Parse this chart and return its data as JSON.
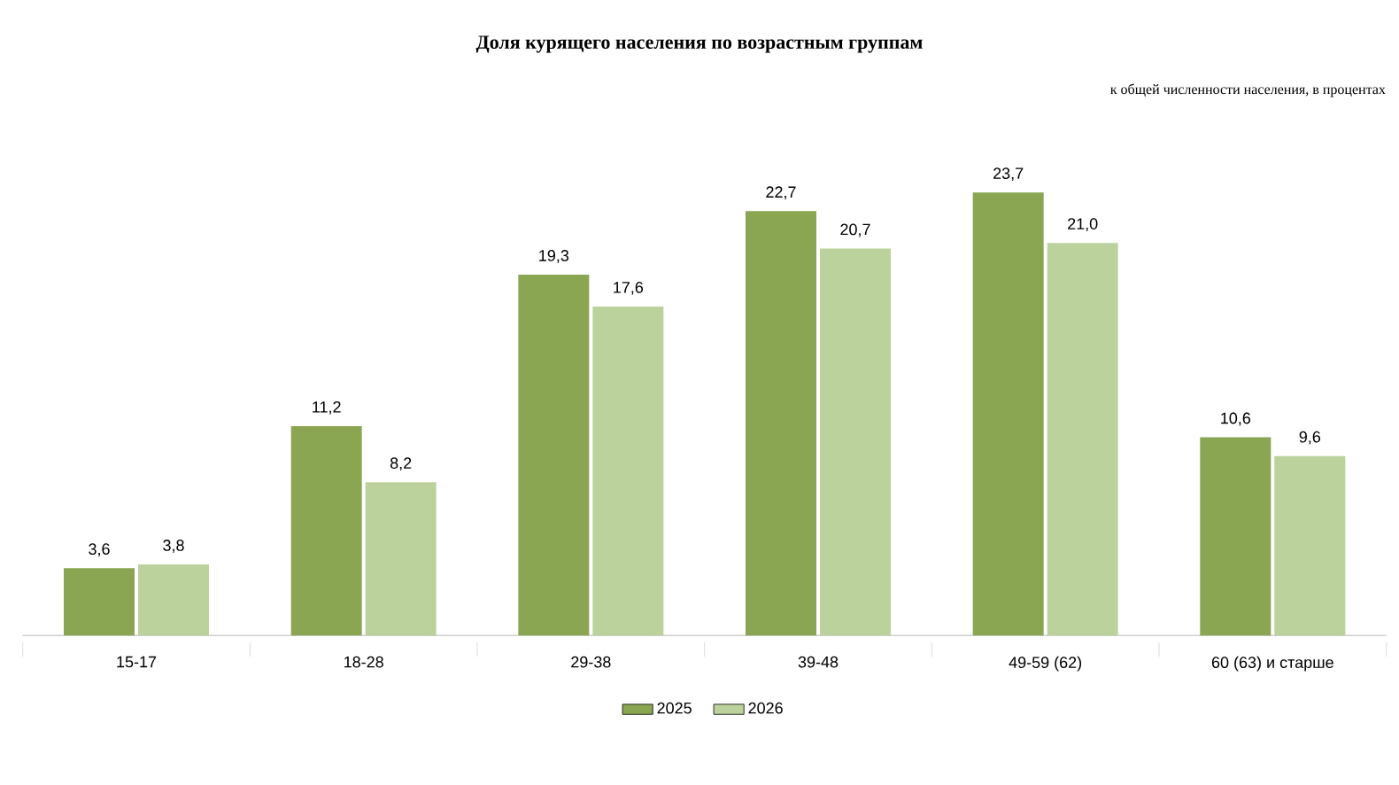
{
  "chart_data": {
    "type": "bar",
    "title": "Доля курящего  населения по возрастным группам",
    "subtitle": "к общей численности населения, в процентах",
    "categories": [
      "15-17",
      "18-28",
      "29-38",
      "39-48",
      "49-59 (62)",
      "60 (63) и старше"
    ],
    "series": [
      {
        "name": "2025",
        "color": "#8aa652",
        "values": [
          3.6,
          11.2,
          19.3,
          22.7,
          23.7,
          10.6
        ],
        "value_labels": [
          "3,6",
          "11,2",
          "19,3",
          "22,7",
          "23,7",
          "10,6"
        ]
      },
      {
        "name": "2026",
        "color": "#bcd29c",
        "values": [
          3.8,
          8.2,
          17.6,
          20.7,
          21.0,
          9.6
        ],
        "value_labels": [
          "3,8",
          "8,2",
          "17,6",
          "20,7",
          "21,0",
          "9,6"
        ]
      }
    ],
    "legend": "bottom"
  }
}
